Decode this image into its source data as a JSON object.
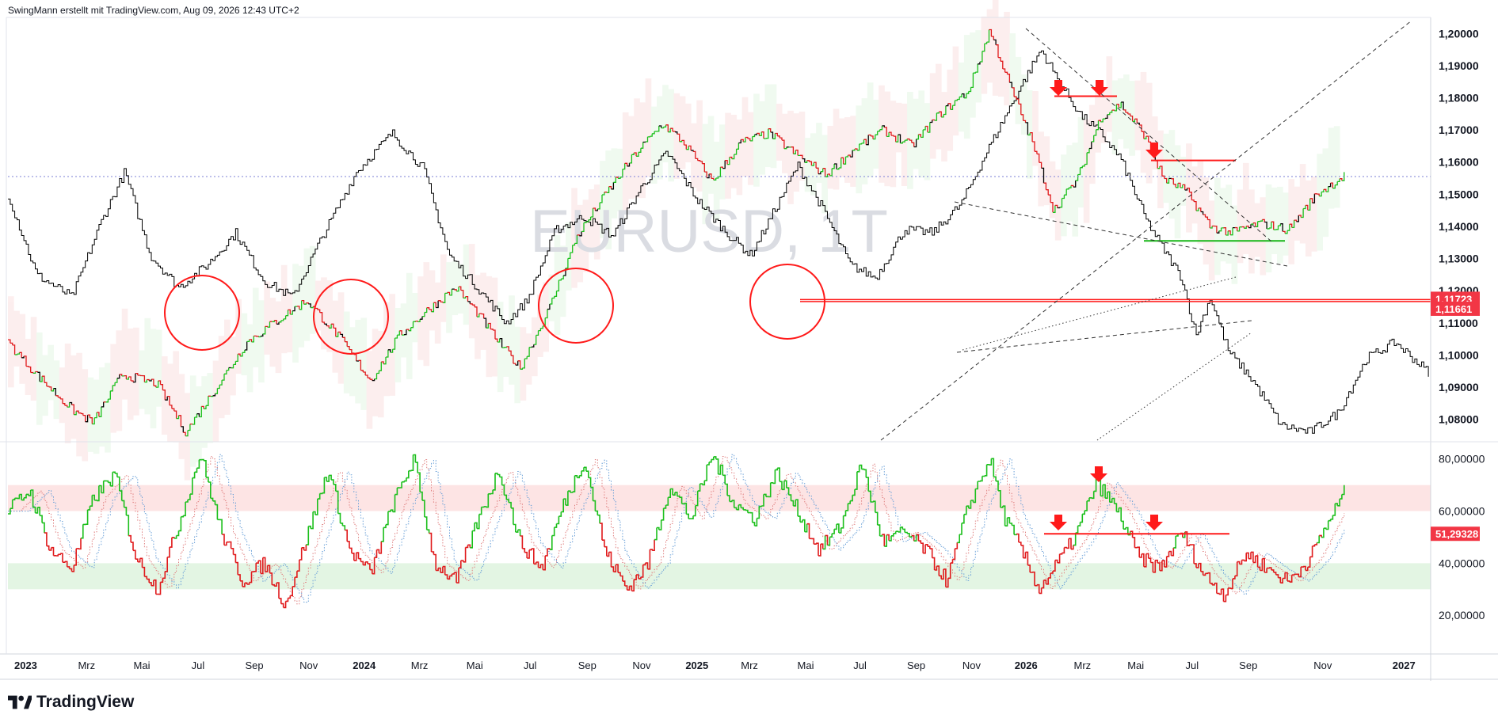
{
  "header": {
    "attribution": "SwingMann erstellt mit TradingView.com, Aug 09, 2026 12:43 UTC+2"
  },
  "footer": {
    "brand": "TradingView"
  },
  "colors": {
    "price_line": "#000000",
    "bull": "#1bbf1b",
    "bear": "#e0191b",
    "red_marker": "#ff1a1a",
    "red_label_bg": "#f23645",
    "dotted_hline": "#7b7fd6",
    "band_red": "#fde4e4",
    "band_green": "#e3f5e3",
    "trendline": "#333333",
    "axis_text": "#131722",
    "watermark": "#dadce2"
  },
  "chart_data": [
    {
      "type": "line",
      "symbol": "EURUSD",
      "watermark": "EURUSD, 1T",
      "axis_ticks": [
        "1,20000",
        "1,19000",
        "1,18000",
        "1,17000",
        "1,16000",
        "1,15000",
        "1,14000",
        "1,13000",
        "1,12000",
        "1,11000",
        "1,10000",
        "1,09000",
        "1,08000"
      ],
      "tick_values": [
        1.2,
        1.19,
        1.18,
        1.17,
        1.16,
        1.15,
        1.14,
        1.13,
        1.12,
        1.11,
        1.1,
        1.09,
        1.08
      ],
      "ylim": [
        1.0735,
        1.2045
      ],
      "price_labels": [
        {
          "text": "1,11723",
          "value": 1.11723
        },
        {
          "text": "1,11661",
          "value": 1.11661
        }
      ],
      "anchors": [
        {
          "t": 0.0,
          "v": 1.15
        },
        {
          "t": 0.02,
          "v": 1.125
        },
        {
          "t": 0.045,
          "v": 1.118
        },
        {
          "t": 0.065,
          "v": 1.141
        },
        {
          "t": 0.082,
          "v": 1.157
        },
        {
          "t": 0.1,
          "v": 1.131
        },
        {
          "t": 0.12,
          "v": 1.121
        },
        {
          "t": 0.14,
          "v": 1.128
        },
        {
          "t": 0.16,
          "v": 1.138
        },
        {
          "t": 0.18,
          "v": 1.123
        },
        {
          "t": 0.2,
          "v": 1.118
        },
        {
          "t": 0.22,
          "v": 1.136
        },
        {
          "t": 0.245,
          "v": 1.157
        },
        {
          "t": 0.27,
          "v": 1.169
        },
        {
          "t": 0.292,
          "v": 1.158
        },
        {
          "t": 0.31,
          "v": 1.131
        },
        {
          "t": 0.33,
          "v": 1.121
        },
        {
          "t": 0.35,
          "v": 1.11
        },
        {
          "t": 0.365,
          "v": 1.117
        },
        {
          "t": 0.385,
          "v": 1.139
        },
        {
          "t": 0.405,
          "v": 1.143
        },
        {
          "t": 0.425,
          "v": 1.137
        },
        {
          "t": 0.445,
          "v": 1.152
        },
        {
          "t": 0.463,
          "v": 1.163
        },
        {
          "t": 0.485,
          "v": 1.148
        },
        {
          "t": 0.505,
          "v": 1.138
        },
        {
          "t": 0.522,
          "v": 1.131
        },
        {
          "t": 0.54,
          "v": 1.146
        },
        {
          "t": 0.555,
          "v": 1.159
        },
        {
          "t": 0.572,
          "v": 1.146
        },
        {
          "t": 0.592,
          "v": 1.128
        },
        {
          "t": 0.61,
          "v": 1.124
        },
        {
          "t": 0.63,
          "v": 1.139
        },
        {
          "t": 0.65,
          "v": 1.138
        },
        {
          "t": 0.67,
          "v": 1.147
        },
        {
          "t": 0.69,
          "v": 1.165
        },
        {
          "t": 0.71,
          "v": 1.182
        },
        {
          "t": 0.726,
          "v": 1.195
        },
        {
          "t": 0.74,
          "v": 1.184
        },
        {
          "t": 0.755,
          "v": 1.174
        },
        {
          "t": 0.768,
          "v": 1.169
        },
        {
          "t": 0.782,
          "v": 1.161
        },
        {
          "t": 0.8,
          "v": 1.142
        },
        {
          "t": 0.812,
          "v": 1.133
        },
        {
          "t": 0.825,
          "v": 1.124
        },
        {
          "t": 0.835,
          "v": 1.106
        },
        {
          "t": 0.845,
          "v": 1.118
        },
        {
          "t": 0.858,
          "v": 1.101
        },
        {
          "t": 0.875,
          "v": 1.092
        },
        {
          "t": 0.895,
          "v": 1.078
        },
        {
          "t": 0.915,
          "v": 1.076
        },
        {
          "t": 0.935,
          "v": 1.082
        },
        {
          "t": 0.955,
          "v": 1.099
        },
        {
          "t": 0.975,
          "v": 1.104
        },
        {
          "t": 1.0,
          "v": 1.094
        }
      ],
      "anchors2": [
        {
          "t": 0.0,
          "v": 1.104
        },
        {
          "t": 0.02,
          "v": 1.094
        },
        {
          "t": 0.045,
          "v": 1.083
        },
        {
          "t": 0.06,
          "v": 1.079
        },
        {
          "t": 0.08,
          "v": 1.094
        },
        {
          "t": 0.105,
          "v": 1.091
        },
        {
          "t": 0.125,
          "v": 1.076
        },
        {
          "t": 0.145,
          "v": 1.089
        },
        {
          "t": 0.168,
          "v": 1.104
        },
        {
          "t": 0.19,
          "v": 1.111
        },
        {
          "t": 0.21,
          "v": 1.117
        },
        {
          "t": 0.232,
          "v": 1.106
        },
        {
          "t": 0.255,
          "v": 1.092
        },
        {
          "t": 0.275,
          "v": 1.106
        },
        {
          "t": 0.295,
          "v": 1.114
        },
        {
          "t": 0.315,
          "v": 1.121
        },
        {
          "t": 0.33,
          "v": 1.113
        },
        {
          "t": 0.345,
          "v": 1.104
        },
        {
          "t": 0.36,
          "v": 1.096
        },
        {
          "t": 0.38,
          "v": 1.114
        },
        {
          "t": 0.4,
          "v": 1.137
        },
        {
          "t": 0.42,
          "v": 1.15
        },
        {
          "t": 0.44,
          "v": 1.162
        },
        {
          "t": 0.46,
          "v": 1.172
        },
        {
          "t": 0.475,
          "v": 1.166
        },
        {
          "t": 0.495,
          "v": 1.154
        },
        {
          "t": 0.515,
          "v": 1.166
        },
        {
          "t": 0.535,
          "v": 1.169
        },
        {
          "t": 0.555,
          "v": 1.162
        },
        {
          "t": 0.575,
          "v": 1.156
        },
        {
          "t": 0.595,
          "v": 1.164
        },
        {
          "t": 0.615,
          "v": 1.17
        },
        {
          "t": 0.635,
          "v": 1.165
        },
        {
          "t": 0.655,
          "v": 1.175
        },
        {
          "t": 0.675,
          "v": 1.182
        },
        {
          "t": 0.69,
          "v": 1.201
        },
        {
          "t": 0.705,
          "v": 1.183
        },
        {
          "t": 0.72,
          "v": 1.166
        },
        {
          "t": 0.735,
          "v": 1.145
        },
        {
          "t": 0.752,
          "v": 1.155
        },
        {
          "t": 0.768,
          "v": 1.174
        },
        {
          "t": 0.782,
          "v": 1.178
        },
        {
          "t": 0.798,
          "v": 1.169
        },
        {
          "t": 0.812,
          "v": 1.155
        },
        {
          "t": 0.828,
          "v": 1.151
        },
        {
          "t": 0.845,
          "v": 1.14
        },
        {
          "t": 0.86,
          "v": 1.138
        },
        {
          "t": 0.88,
          "v": 1.141
        },
        {
          "t": 0.9,
          "v": 1.139
        },
        {
          "t": 0.92,
          "v": 1.15
        },
        {
          "t": 0.94,
          "v": 1.156
        }
      ]
    },
    {
      "type": "line",
      "axis_ticks": [
        "80,00000",
        "60,00000",
        "40,00000",
        "20,00000"
      ],
      "tick_values": [
        80,
        60,
        40,
        20
      ],
      "ylim": [
        7,
        86
      ],
      "value_label": {
        "text": "51,29328",
        "value": 51.29328
      },
      "anchors": [
        {
          "t": 0.0,
          "v": 60
        },
        {
          "t": 0.015,
          "v": 68
        },
        {
          "t": 0.03,
          "v": 45
        },
        {
          "t": 0.045,
          "v": 38
        },
        {
          "t": 0.06,
          "v": 65
        },
        {
          "t": 0.075,
          "v": 74
        },
        {
          "t": 0.09,
          "v": 42
        },
        {
          "t": 0.105,
          "v": 30
        },
        {
          "t": 0.12,
          "v": 55
        },
        {
          "t": 0.135,
          "v": 82
        },
        {
          "t": 0.15,
          "v": 52
        },
        {
          "t": 0.165,
          "v": 33
        },
        {
          "t": 0.18,
          "v": 40
        },
        {
          "t": 0.195,
          "v": 24
        },
        {
          "t": 0.21,
          "v": 50
        },
        {
          "t": 0.225,
          "v": 76
        },
        {
          "t": 0.24,
          "v": 45
        },
        {
          "t": 0.255,
          "v": 36
        },
        {
          "t": 0.27,
          "v": 62
        },
        {
          "t": 0.285,
          "v": 80
        },
        {
          "t": 0.3,
          "v": 40
        },
        {
          "t": 0.315,
          "v": 33
        },
        {
          "t": 0.33,
          "v": 56
        },
        {
          "t": 0.345,
          "v": 76
        },
        {
          "t": 0.36,
          "v": 48
        },
        {
          "t": 0.375,
          "v": 38
        },
        {
          "t": 0.39,
          "v": 62
        },
        {
          "t": 0.405,
          "v": 80
        },
        {
          "t": 0.42,
          "v": 44
        },
        {
          "t": 0.435,
          "v": 30
        },
        {
          "t": 0.45,
          "v": 40
        },
        {
          "t": 0.465,
          "v": 70
        },
        {
          "t": 0.48,
          "v": 57
        },
        {
          "t": 0.495,
          "v": 82
        },
        {
          "t": 0.51,
          "v": 63
        },
        {
          "t": 0.525,
          "v": 57
        },
        {
          "t": 0.54,
          "v": 75
        },
        {
          "t": 0.555,
          "v": 60
        },
        {
          "t": 0.57,
          "v": 45
        },
        {
          "t": 0.585,
          "v": 54
        },
        {
          "t": 0.6,
          "v": 78
        },
        {
          "t": 0.615,
          "v": 48
        },
        {
          "t": 0.63,
          "v": 52
        },
        {
          "t": 0.645,
          "v": 45
        },
        {
          "t": 0.66,
          "v": 33
        },
        {
          "t": 0.675,
          "v": 62
        },
        {
          "t": 0.69,
          "v": 80
        },
        {
          "t": 0.7,
          "v": 58
        },
        {
          "t": 0.712,
          "v": 45
        },
        {
          "t": 0.725,
          "v": 30
        },
        {
          "t": 0.735,
          "v": 38
        },
        {
          "t": 0.75,
          "v": 50
        },
        {
          "t": 0.765,
          "v": 71
        },
        {
          "t": 0.78,
          "v": 60
        },
        {
          "t": 0.795,
          "v": 42
        },
        {
          "t": 0.81,
          "v": 38
        },
        {
          "t": 0.825,
          "v": 52
        },
        {
          "t": 0.84,
          "v": 36
        },
        {
          "t": 0.855,
          "v": 28
        },
        {
          "t": 0.87,
          "v": 44
        },
        {
          "t": 0.885,
          "v": 38
        },
        {
          "t": 0.9,
          "v": 33
        },
        {
          "t": 0.915,
          "v": 42
        },
        {
          "t": 0.93,
          "v": 58
        },
        {
          "t": 0.94,
          "v": 68
        }
      ]
    }
  ],
  "time_axis": {
    "labels": [
      {
        "text": "2023",
        "bold": true,
        "x": 0.0125
      },
      {
        "text": "Mrz",
        "bold": false,
        "x": 0.0553
      },
      {
        "text": "Mai",
        "bold": false,
        "x": 0.0941
      },
      {
        "text": "Jul",
        "bold": false,
        "x": 0.1336
      },
      {
        "text": "Sep",
        "bold": false,
        "x": 0.1732
      },
      {
        "text": "Nov",
        "bold": false,
        "x": 0.2114
      },
      {
        "text": "2024",
        "bold": true,
        "x": 0.2504
      },
      {
        "text": "Mrz",
        "bold": false,
        "x": 0.2893
      },
      {
        "text": "Mai",
        "bold": false,
        "x": 0.3281
      },
      {
        "text": "Jul",
        "bold": false,
        "x": 0.367
      },
      {
        "text": "Sep",
        "bold": false,
        "x": 0.4072
      },
      {
        "text": "Nov",
        "bold": false,
        "x": 0.4454
      },
      {
        "text": "2025",
        "bold": true,
        "x": 0.4843
      },
      {
        "text": "Mrz",
        "bold": false,
        "x": 0.5212
      },
      {
        "text": "Mai",
        "bold": false,
        "x": 0.5607
      },
      {
        "text": "Jul",
        "bold": false,
        "x": 0.5989
      },
      {
        "text": "Sep",
        "bold": false,
        "x": 0.6384
      },
      {
        "text": "Nov",
        "bold": false,
        "x": 0.6773
      },
      {
        "text": "2026",
        "bold": true,
        "x": 0.7156
      },
      {
        "text": "Mrz",
        "bold": false,
        "x": 0.7552
      },
      {
        "text": "Mai",
        "bold": false,
        "x": 0.7927
      },
      {
        "text": "Jul",
        "bold": false,
        "x": 0.8323
      },
      {
        "text": "Sep",
        "bold": false,
        "x": 0.8718
      },
      {
        "text": "Nov",
        "bold": false,
        "x": 0.9242
      },
      {
        "text": "2027",
        "bold": true,
        "x": 0.9812
      }
    ]
  }
}
